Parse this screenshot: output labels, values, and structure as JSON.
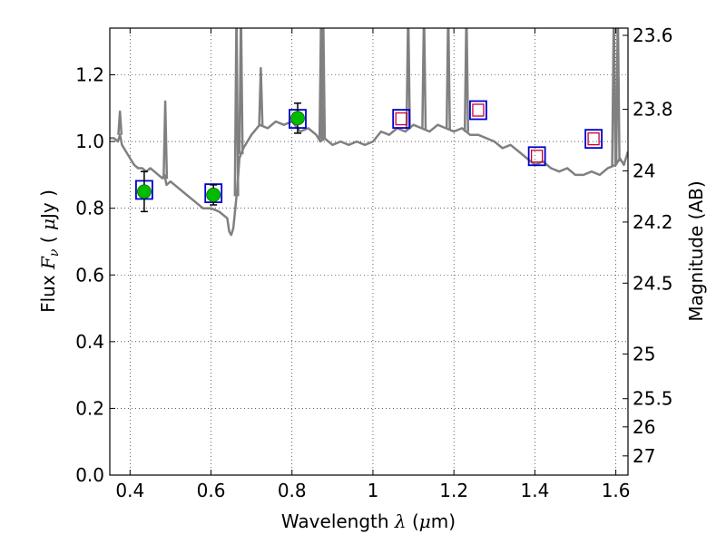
{
  "chart_data": {
    "type": "scatter",
    "title": "",
    "xlabel": {
      "pre": "Wavelength  ",
      "sym": "λ",
      "mid": " (",
      "mu": "μ",
      "post": "m)"
    },
    "ylabel": {
      "pre": "Flux  ",
      "sym": "F",
      "sub": "ν",
      "mid": "  ( ",
      "mu": "μ",
      "post": "Jy )"
    },
    "y2label": "Magnitude (AB)",
    "xlim": [
      0.35,
      1.63
    ],
    "ylim": [
      0.0,
      1.34
    ],
    "grid": true,
    "x_ticks": [
      0.4,
      0.6,
      0.8,
      1.0,
      1.2,
      1.4,
      1.6
    ],
    "x_tick_labels": [
      "0.4",
      "0.6",
      "0.8",
      "1",
      "1.2",
      "1.4",
      "1.6"
    ],
    "y_ticks": [
      0.0,
      0.2,
      0.4,
      0.6,
      0.8,
      1.0,
      1.2
    ],
    "y_tick_labels": [
      "0.0",
      "0.2",
      "0.4",
      "0.6",
      "0.8",
      "1.0",
      "1.2"
    ],
    "y2_ticks": [
      23.6,
      23.8,
      24.0,
      24.2,
      24.5,
      25.0,
      25.5,
      26.0,
      27.0
    ],
    "y2_tick_labels": [
      "23.6",
      "23.8",
      "24",
      "24.2",
      "24.5",
      "25",
      "25.5",
      "26",
      "27"
    ],
    "colors": {
      "spectrum": "#808080",
      "observed_fill": "#00bb00",
      "model_box": "#0000cc",
      "upper_box": "#cc0033",
      "errorbar": "#000000"
    },
    "spectrum": {
      "x": [
        0.35,
        0.36,
        0.37,
        0.375,
        0.38,
        0.39,
        0.4,
        0.41,
        0.42,
        0.43,
        0.44,
        0.45,
        0.46,
        0.47,
        0.48,
        0.485,
        0.49,
        0.5,
        0.52,
        0.54,
        0.56,
        0.58,
        0.6,
        0.62,
        0.64,
        0.645,
        0.65,
        0.655,
        0.66,
        0.665,
        0.67,
        0.68,
        0.7,
        0.72,
        0.74,
        0.76,
        0.78,
        0.8,
        0.82,
        0.84,
        0.86,
        0.87,
        0.88,
        0.9,
        0.92,
        0.94,
        0.96,
        0.98,
        1.0,
        1.02,
        1.04,
        1.06,
        1.08,
        1.1,
        1.12,
        1.14,
        1.16,
        1.18,
        1.2,
        1.22,
        1.24,
        1.26,
        1.28,
        1.3,
        1.32,
        1.34,
        1.36,
        1.38,
        1.4,
        1.42,
        1.44,
        1.46,
        1.48,
        1.5,
        1.52,
        1.54,
        1.56,
        1.58,
        1.6,
        1.61,
        1.62,
        1.63
      ],
      "y": [
        1.01,
        1.01,
        1.0,
        1.02,
        0.99,
        0.97,
        0.95,
        0.93,
        0.92,
        0.92,
        0.91,
        0.92,
        0.91,
        0.9,
        0.89,
        0.9,
        0.87,
        0.88,
        0.86,
        0.84,
        0.82,
        0.8,
        0.8,
        0.79,
        0.77,
        0.73,
        0.72,
        0.74,
        0.8,
        0.86,
        0.95,
        0.98,
        1.02,
        1.05,
        1.04,
        1.06,
        1.05,
        1.06,
        1.03,
        1.04,
        1.02,
        1.0,
        1.01,
        0.99,
        1.0,
        0.99,
        1.0,
        0.99,
        1.0,
        1.03,
        1.02,
        1.04,
        1.03,
        1.05,
        1.04,
        1.03,
        1.05,
        1.04,
        1.03,
        1.04,
        1.02,
        1.02,
        1.01,
        1.0,
        0.98,
        0.99,
        0.97,
        0.95,
        0.93,
        0.94,
        0.92,
        0.91,
        0.92,
        0.9,
        0.9,
        0.91,
        0.9,
        0.92,
        0.93,
        0.95,
        0.93,
        0.97
      ]
    },
    "spikes": [
      {
        "x": 0.375,
        "y": 1.09
      },
      {
        "x": 0.487,
        "y": 1.12
      },
      {
        "x": 0.663,
        "y": 1.4
      },
      {
        "x": 0.674,
        "y": 1.4
      },
      {
        "x": 0.723,
        "y": 1.22
      },
      {
        "x": 0.872,
        "y": 1.4
      },
      {
        "x": 0.877,
        "y": 1.4
      },
      {
        "x": 1.087,
        "y": 1.4
      },
      {
        "x": 1.126,
        "y": 1.4
      },
      {
        "x": 1.186,
        "y": 1.4
      },
      {
        "x": 1.231,
        "y": 1.4
      },
      {
        "x": 1.595,
        "y": 1.4
      },
      {
        "x": 1.605,
        "y": 1.4
      }
    ],
    "observed": [
      {
        "x": 0.435,
        "y": 0.85,
        "err": 0.06
      },
      {
        "x": 0.606,
        "y": 0.84,
        "err": 0.03
      },
      {
        "x": 0.814,
        "y": 1.07,
        "err": 0.045
      }
    ],
    "model_boxes": [
      {
        "x": 0.435,
        "y": 0.855
      },
      {
        "x": 0.606,
        "y": 0.845
      },
      {
        "x": 0.814,
        "y": 1.068
      },
      {
        "x": 1.07,
        "y": 1.068
      },
      {
        "x": 1.26,
        "y": 1.094
      },
      {
        "x": 1.405,
        "y": 0.956
      },
      {
        "x": 1.545,
        "y": 1.008
      }
    ],
    "upper_boxes": [
      {
        "x": 1.07,
        "y": 1.068
      },
      {
        "x": 1.26,
        "y": 1.094
      },
      {
        "x": 1.405,
        "y": 0.956
      },
      {
        "x": 1.545,
        "y": 1.008
      }
    ]
  }
}
